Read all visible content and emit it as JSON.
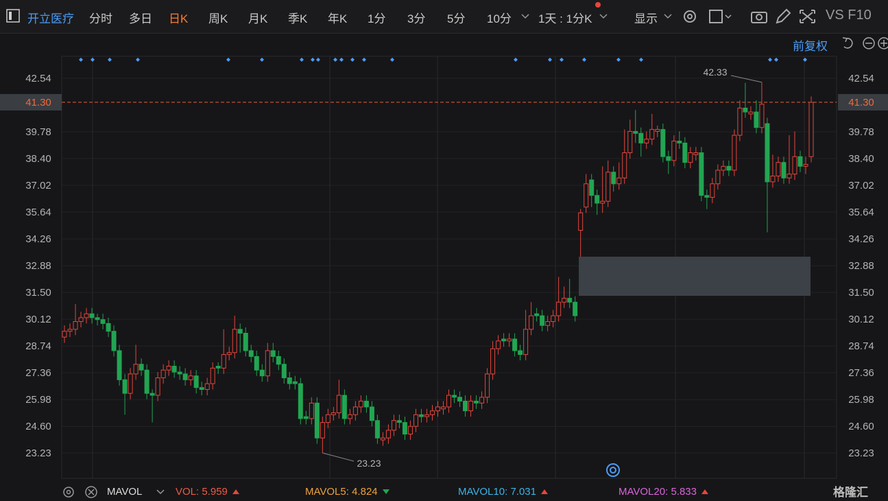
{
  "toolbar": {
    "stock_name": "开立医疗",
    "tabs": [
      "分时",
      "多日",
      "日K",
      "周K",
      "月K",
      "季K",
      "年K",
      "1分",
      "3分",
      "5分",
      "10分"
    ],
    "period_select": "1天 : 1分K",
    "display": "显示",
    "vs_f10": "VS F10"
  },
  "chart_data": {
    "type": "candlestick",
    "adjust_mode": "前复权",
    "up_color": "#e8453c",
    "down_color": "#22a552",
    "ylim": [
      21.92,
      43.67
    ],
    "yticks": [
      42.54,
      {
        "value": 41.3,
        "label": "41.30"
      },
      39.78,
      {
        "value": 38.4,
        "label": "38.40"
      },
      37.02,
      35.64,
      34.26,
      32.88,
      {
        "value": 31.5,
        "label": "31.50"
      },
      30.12,
      28.74,
      27.36,
      25.98,
      {
        "value": 24.6,
        "label": "24.60"
      },
      23.23
    ],
    "max_label": 42.33,
    "min_label": 23.23,
    "ohlc": [
      [
        29.2,
        29.8,
        28.9,
        29.5
      ],
      [
        29.5,
        29.9,
        29.2,
        29.6
      ],
      [
        29.6,
        30.9,
        29.3,
        30.0
      ],
      [
        30.0,
        30.5,
        29.7,
        30.2
      ],
      [
        30.2,
        30.7,
        29.9,
        30.4
      ],
      [
        30.4,
        30.7,
        29.9,
        30.2
      ],
      [
        30.2,
        30.4,
        29.8,
        30.1
      ],
      [
        30.1,
        30.4,
        29.6,
        29.9
      ],
      [
        29.9,
        30.2,
        29.2,
        29.5
      ],
      [
        29.5,
        29.8,
        28.2,
        28.5
      ],
      [
        28.5,
        28.8,
        26.7,
        27.0
      ],
      [
        27.0,
        27.3,
        25.2,
        26.3
      ],
      [
        26.3,
        27.6,
        26.0,
        27.3
      ],
      [
        27.3,
        28.8,
        27.0,
        27.8
      ],
      [
        27.8,
        28.1,
        27.2,
        27.5
      ],
      [
        27.5,
        27.8,
        26.0,
        26.3
      ],
      [
        26.3,
        26.5,
        24.8,
        26.2
      ],
      [
        26.2,
        27.4,
        25.9,
        27.1
      ],
      [
        27.1,
        27.8,
        26.8,
        27.5
      ],
      [
        27.5,
        28.0,
        27.2,
        27.7
      ],
      [
        27.7,
        28.0,
        27.1,
        27.4
      ],
      [
        27.4,
        27.7,
        27.0,
        27.3
      ],
      [
        27.3,
        27.6,
        26.7,
        27.0
      ],
      [
        27.0,
        27.5,
        26.7,
        27.2
      ],
      [
        27.2,
        27.5,
        26.3,
        26.6
      ],
      [
        26.6,
        26.9,
        26.2,
        26.5
      ],
      [
        26.5,
        27.1,
        26.2,
        26.8
      ],
      [
        26.8,
        27.9,
        26.5,
        27.6
      ],
      [
        27.7,
        27.9,
        27.3,
        27.6
      ],
      [
        27.6,
        29.6,
        27.3,
        28.3
      ],
      [
        28.3,
        28.7,
        28.0,
        28.4
      ],
      [
        28.4,
        30.3,
        28.1,
        29.6
      ],
      [
        29.6,
        29.9,
        28.4,
        29.4
      ],
      [
        29.4,
        29.7,
        28.2,
        28.5
      ],
      [
        28.5,
        28.8,
        27.9,
        28.2
      ],
      [
        28.2,
        28.5,
        27.2,
        27.5
      ],
      [
        27.5,
        27.8,
        26.9,
        27.2
      ],
      [
        27.2,
        28.9,
        26.9,
        28.5
      ],
      [
        28.5,
        28.9,
        27.9,
        28.2
      ],
      [
        28.2,
        28.5,
        27.5,
        27.8
      ],
      [
        27.8,
        28.1,
        26.8,
        27.1
      ],
      [
        27.1,
        27.4,
        26.5,
        26.8
      ],
      [
        26.9,
        27.2,
        26.5,
        26.8
      ],
      [
        26.8,
        27.1,
        24.7,
        25.0
      ],
      [
        25.1,
        25.4,
        24.7,
        25.0
      ],
      [
        25.0,
        26.1,
        24.7,
        25.8
      ],
      [
        25.8,
        26.1,
        23.7,
        24.0
      ],
      [
        24.0,
        25.1,
        23.23,
        24.8
      ],
      [
        24.8,
        25.5,
        24.5,
        25.2
      ],
      [
        25.2,
        25.6,
        24.9,
        25.3
      ],
      [
        25.3,
        27.0,
        25.0,
        26.2
      ],
      [
        26.2,
        26.5,
        24.7,
        25.0
      ],
      [
        25.0,
        25.5,
        24.7,
        25.2
      ],
      [
        25.2,
        25.9,
        24.9,
        25.6
      ],
      [
        25.6,
        26.2,
        25.3,
        25.9
      ],
      [
        25.9,
        26.2,
        25.3,
        25.6
      ],
      [
        25.6,
        25.9,
        24.6,
        24.9
      ],
      [
        24.9,
        25.2,
        23.7,
        24.0
      ],
      [
        23.9,
        24.3,
        23.6,
        24.0
      ],
      [
        24.0,
        24.7,
        23.7,
        24.4
      ],
      [
        24.4,
        25.2,
        24.1,
        24.9
      ],
      [
        24.9,
        25.2,
        24.5,
        24.8
      ],
      [
        24.8,
        25.1,
        23.9,
        24.2
      ],
      [
        24.2,
        24.9,
        23.9,
        24.6
      ],
      [
        24.6,
        25.5,
        24.3,
        25.2
      ],
      [
        25.2,
        25.5,
        24.8,
        25.1
      ],
      [
        25.1,
        25.5,
        24.8,
        25.2
      ],
      [
        25.2,
        25.7,
        24.9,
        25.4
      ],
      [
        25.4,
        25.9,
        25.1,
        25.6
      ],
      [
        25.5,
        25.9,
        25.2,
        25.6
      ],
      [
        25.6,
        26.5,
        25.3,
        26.2
      ],
      [
        26.2,
        26.5,
        25.8,
        26.1
      ],
      [
        26.1,
        26.4,
        25.6,
        25.9
      ],
      [
        25.9,
        26.2,
        25.1,
        25.4
      ],
      [
        25.4,
        26.2,
        25.1,
        25.9
      ],
      [
        25.9,
        26.2,
        25.5,
        25.8
      ],
      [
        25.8,
        26.4,
        25.5,
        26.1
      ],
      [
        26.1,
        27.6,
        25.8,
        27.3
      ],
      [
        27.3,
        29.0,
        27.0,
        28.6
      ],
      [
        28.6,
        29.3,
        28.3,
        29.0
      ],
      [
        29.1,
        29.4,
        28.7,
        29.0
      ],
      [
        29.0,
        29.4,
        28.7,
        29.1
      ],
      [
        29.1,
        29.4,
        28.2,
        28.5
      ],
      [
        28.5,
        28.8,
        28.0,
        28.3
      ],
      [
        28.3,
        30.6,
        28.0,
        29.6
      ],
      [
        29.6,
        31.0,
        29.3,
        30.3
      ],
      [
        30.4,
        30.7,
        30.0,
        30.3
      ],
      [
        30.3,
        30.6,
        29.5,
        29.8
      ],
      [
        29.8,
        30.3,
        29.5,
        30.0
      ],
      [
        30.0,
        30.6,
        29.7,
        30.3
      ],
      [
        30.3,
        32.3,
        30.0,
        31.0
      ],
      [
        31.0,
        31.8,
        30.7,
        31.2
      ],
      [
        31.2,
        32.2,
        30.7,
        31.0
      ],
      [
        31.0,
        31.3,
        30.0,
        30.3
      ],
      [
        34.7,
        35.8,
        33.0,
        35.6
      ],
      [
        35.9,
        37.6,
        35.6,
        37.1
      ],
      [
        37.3,
        37.6,
        35.9,
        36.5
      ],
      [
        36.5,
        36.8,
        35.5,
        36.1
      ],
      [
        36.1,
        38.0,
        35.6,
        36.2
      ],
      [
        36.2,
        38.3,
        35.9,
        37.7
      ],
      [
        37.7,
        38.0,
        36.7,
        37.1
      ],
      [
        37.1,
        38.2,
        36.8,
        37.4
      ],
      [
        37.4,
        39.9,
        37.1,
        38.7
      ],
      [
        38.7,
        40.4,
        38.4,
        39.8
      ],
      [
        39.8,
        40.9,
        39.2,
        39.7
      ],
      [
        39.7,
        40.0,
        38.5,
        39.2
      ],
      [
        39.2,
        39.8,
        38.9,
        39.4
      ],
      [
        39.4,
        40.7,
        39.1,
        39.9
      ],
      [
        39.8,
        40.1,
        39.5,
        39.9
      ],
      [
        39.9,
        40.2,
        38.2,
        38.5
      ],
      [
        38.5,
        38.8,
        37.6,
        38.3
      ],
      [
        38.3,
        39.6,
        38.0,
        39.3
      ],
      [
        39.3,
        39.8,
        38.9,
        39.2
      ],
      [
        39.2,
        39.5,
        37.9,
        38.2
      ],
      [
        38.2,
        39.0,
        37.9,
        38.7
      ],
      [
        38.6,
        39.0,
        38.3,
        38.7
      ],
      [
        38.7,
        39.0,
        36.2,
        36.5
      ],
      [
        36.5,
        36.8,
        35.8,
        36.4
      ],
      [
        36.4,
        37.4,
        36.1,
        37.1
      ],
      [
        37.1,
        38.1,
        36.8,
        37.8
      ],
      [
        37.8,
        38.3,
        37.5,
        38.0
      ],
      [
        38.0,
        38.3,
        37.5,
        37.8
      ],
      [
        37.8,
        39.9,
        37.5,
        39.6
      ],
      [
        39.6,
        41.4,
        39.3,
        41.0
      ],
      [
        41.0,
        42.3,
        40.5,
        40.8
      ],
      [
        40.7,
        41.1,
        40.4,
        40.8
      ],
      [
        40.8,
        41.4,
        39.7,
        40.0
      ],
      [
        40.0,
        42.33,
        39.7,
        41.2
      ],
      [
        40.2,
        40.5,
        34.6,
        37.2
      ],
      [
        37.2,
        38.6,
        36.9,
        37.5
      ],
      [
        37.5,
        38.5,
        37.2,
        38.2
      ],
      [
        38.2,
        38.5,
        37.1,
        37.4
      ],
      [
        37.4,
        39.6,
        37.1,
        37.6
      ],
      [
        37.6,
        39.8,
        37.3,
        38.5
      ],
      [
        38.5,
        38.8,
        37.7,
        38.0
      ],
      [
        38.0,
        38.5,
        37.6,
        38.1
      ],
      [
        38.5,
        41.6,
        38.2,
        41.3
      ]
    ]
  },
  "indicator_bar": {
    "name": "MAVOL",
    "items": [
      {
        "name": "VOL:",
        "value": 5.959,
        "color": "#f05a46"
      },
      {
        "name": "MAVOL5:",
        "value": 4.824,
        "color": "#f0a23c"
      },
      {
        "name": "MAVOL10:",
        "value": 7.031,
        "color": "#3cb4e6"
      },
      {
        "name": "MAVOL20:",
        "value": 5.833,
        "color": "#dc64dc"
      }
    ]
  },
  "watermark": "格隆汇"
}
